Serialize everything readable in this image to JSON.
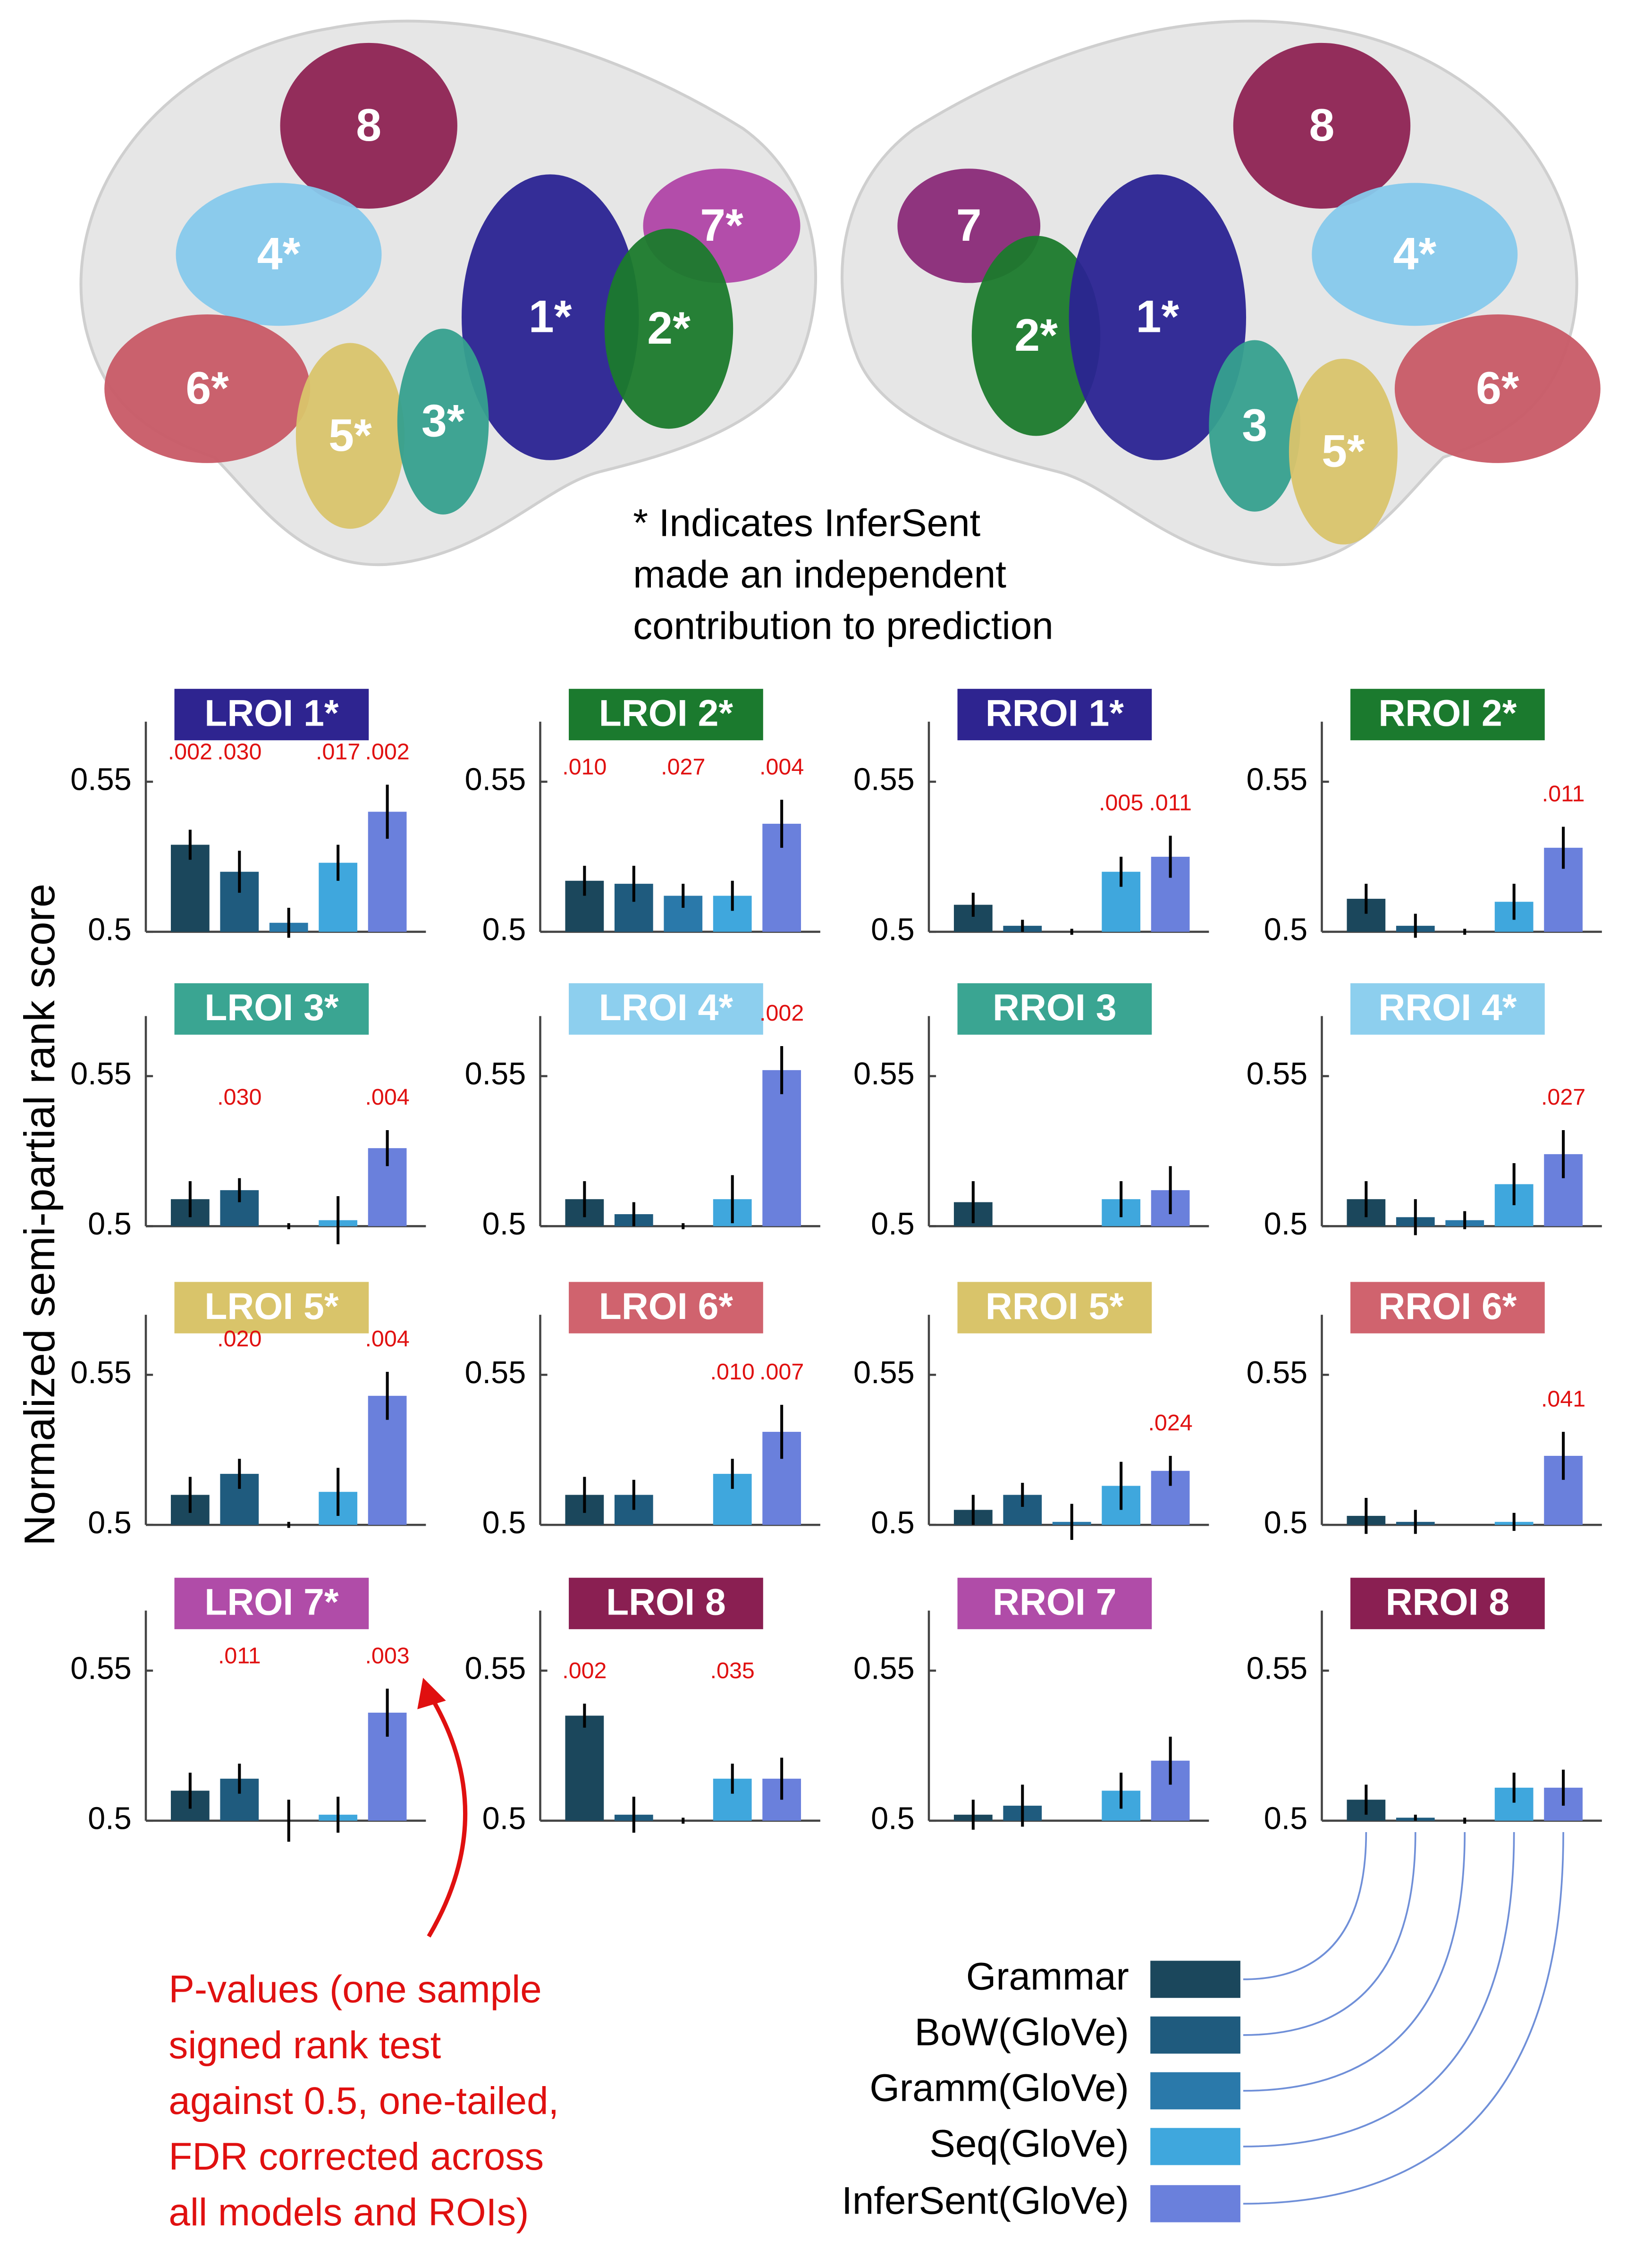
{
  "brain": {
    "left": [
      {
        "label": "8",
        "color": "#8e2353"
      },
      {
        "label": "4*",
        "color": "#86c9ec"
      },
      {
        "label": "7*",
        "color": "#b044a6"
      },
      {
        "label": "1*",
        "color": "#2a2392"
      },
      {
        "label": "2*",
        "color": "#1b7a2c"
      },
      {
        "label": "6*",
        "color": "#c85a66"
      },
      {
        "label": "5*",
        "color": "#d9c46c"
      },
      {
        "label": "3*",
        "color": "#36a08e"
      }
    ],
    "right": [
      {
        "label": "8",
        "color": "#8e2353"
      },
      {
        "label": "7",
        "color": "#8a2a78"
      },
      {
        "label": "2*",
        "color": "#1b7a2c"
      },
      {
        "label": "1*",
        "color": "#2a2392"
      },
      {
        "label": "4*",
        "color": "#86c9ec"
      },
      {
        "label": "6*",
        "color": "#c85a66"
      },
      {
        "label": "3",
        "color": "#36a08e"
      },
      {
        "label": "5*",
        "color": "#d9c46c"
      }
    ]
  },
  "note": [
    "* Indicates InferSent",
    "made an independent",
    "contribution to prediction"
  ],
  "y_axis_label": "Normalized semi-partial rank score",
  "legend": [
    {
      "name": "Grammar",
      "color": "#1b475c"
    },
    {
      "name": "BoW(GloVe)",
      "color": "#1f5b7e"
    },
    {
      "name": "Gramm(GloVe)",
      "color": "#2a79aa"
    },
    {
      "name": "Seq(GloVe)",
      "color": "#3fa7dd"
    },
    {
      "name": "InferSent(GloVe)",
      "color": "#6a80dc"
    }
  ],
  "annotation": [
    "P-values (one sample",
    "signed rank test",
    "against 0.5, one-tailed,",
    "FDR corrected across",
    "all models and ROIs)"
  ],
  "chart_data": [
    {
      "type": "bar",
      "title": "LROI 1*",
      "title_color": "#2e2490",
      "values": [
        0.529,
        0.52,
        0.503,
        0.523,
        0.54
      ],
      "errors": [
        0.005,
        0.007,
        0.005,
        0.006,
        0.009
      ],
      "p_values": [
        ".002",
        ".030",
        null,
        ".017",
        ".002"
      ],
      "ylim": [
        0.5,
        0.57
      ],
      "yticks": [
        0.5,
        0.55
      ]
    },
    {
      "type": "bar",
      "title": "LROI 2*",
      "title_color": "#1b7a2e",
      "values": [
        0.517,
        0.516,
        0.512,
        0.512,
        0.536
      ],
      "errors": [
        0.005,
        0.006,
        0.004,
        0.005,
        0.008
      ],
      "p_values": [
        ".010",
        null,
        ".027",
        null,
        ".004"
      ],
      "ylim": [
        0.5,
        0.57
      ],
      "yticks": [
        0.5,
        0.55
      ]
    },
    {
      "type": "bar",
      "title": "RROI 1*",
      "title_color": "#2e2490",
      "values": [
        0.509,
        0.502,
        0.5,
        0.52,
        0.525
      ],
      "errors": [
        0.004,
        0.002,
        0.001,
        0.005,
        0.007
      ],
      "p_values": [
        null,
        null,
        null,
        ".005",
        ".011"
      ],
      "ylim": [
        0.5,
        0.57
      ],
      "yticks": [
        0.5,
        0.55
      ]
    },
    {
      "type": "bar",
      "title": "RROI 2*",
      "title_color": "#1b7a2e",
      "values": [
        0.511,
        0.502,
        0.5,
        0.51,
        0.528
      ],
      "errors": [
        0.005,
        0.004,
        0.001,
        0.006,
        0.007
      ],
      "p_values": [
        null,
        null,
        null,
        null,
        ".011"
      ],
      "ylim": [
        0.5,
        0.57
      ],
      "yticks": [
        0.5,
        0.55
      ]
    },
    {
      "type": "bar",
      "title": "LROI 3*",
      "title_color": "#3aa592",
      "values": [
        0.509,
        0.512,
        0.5,
        0.502,
        0.526
      ],
      "errors": [
        0.006,
        0.004,
        0.001,
        0.008,
        0.006
      ],
      "p_values": [
        null,
        ".030",
        null,
        null,
        ".004"
      ],
      "ylim": [
        0.5,
        0.57
      ],
      "yticks": [
        0.5,
        0.55
      ]
    },
    {
      "type": "bar",
      "title": "LROI 4*",
      "title_color": "#8dcfee",
      "values": [
        0.509,
        0.504,
        0.5,
        0.509,
        0.552
      ],
      "errors": [
        0.006,
        0.004,
        0.001,
        0.008,
        0.008
      ],
      "p_values": [
        null,
        null,
        null,
        null,
        ".002"
      ],
      "ylim": [
        0.5,
        0.57
      ],
      "yticks": [
        0.5,
        0.55
      ]
    },
    {
      "type": "bar",
      "title": "RROI 3",
      "title_color": "#3aa592",
      "values": [
        0.508,
        0.5,
        0.5,
        0.509,
        0.512
      ],
      "errors": [
        0.007,
        0,
        0,
        0.006,
        0.008
      ],
      "p_values": [
        null,
        null,
        null,
        null,
        null
      ],
      "ylim": [
        0.5,
        0.57
      ],
      "yticks": [
        0.5,
        0.55
      ]
    },
    {
      "type": "bar",
      "title": "RROI 4*",
      "title_color": "#8dcfee",
      "values": [
        0.509,
        0.503,
        0.502,
        0.514,
        0.524
      ],
      "errors": [
        0.006,
        0.006,
        0.003,
        0.007,
        0.008
      ],
      "p_values": [
        null,
        null,
        null,
        null,
        ".027"
      ],
      "ylim": [
        0.5,
        0.57
      ],
      "yticks": [
        0.5,
        0.55
      ]
    },
    {
      "type": "bar",
      "title": "LROI 5*",
      "title_color": "#d9c46a",
      "values": [
        0.51,
        0.517,
        0.5,
        0.511,
        0.543
      ],
      "errors": [
        0.006,
        0.005,
        0.001,
        0.008,
        0.008
      ],
      "p_values": [
        null,
        ".020",
        null,
        null,
        ".004"
      ],
      "ylim": [
        0.5,
        0.57
      ],
      "yticks": [
        0.5,
        0.55
      ]
    },
    {
      "type": "bar",
      "title": "LROI 6*",
      "title_color": "#d0636e",
      "values": [
        0.51,
        0.51,
        0.5,
        0.517,
        0.531
      ],
      "errors": [
        0.006,
        0.005,
        0,
        0.005,
        0.009
      ],
      "p_values": [
        null,
        null,
        null,
        ".010",
        ".007"
      ],
      "ylim": [
        0.5,
        0.57
      ],
      "yticks": [
        0.5,
        0.55
      ]
    },
    {
      "type": "bar",
      "title": "RROI 5*",
      "title_color": "#d9c46a",
      "values": [
        0.505,
        0.51,
        0.501,
        0.513,
        0.518
      ],
      "errors": [
        0.005,
        0.004,
        0.006,
        0.008,
        0.005
      ],
      "p_values": [
        null,
        null,
        null,
        null,
        ".024"
      ],
      "ylim": [
        0.5,
        0.57
      ],
      "yticks": [
        0.5,
        0.55
      ]
    },
    {
      "type": "bar",
      "title": "RROI 6*",
      "title_color": "#d0636e",
      "values": [
        0.503,
        0.501,
        0.5,
        0.501,
        0.523
      ],
      "errors": [
        0.006,
        0.004,
        0,
        0.003,
        0.008
      ],
      "p_values": [
        null,
        null,
        null,
        null,
        ".041"
      ],
      "ylim": [
        0.5,
        0.57
      ],
      "yticks": [
        0.5,
        0.55
      ]
    },
    {
      "type": "bar",
      "title": "LROI 7*",
      "title_color": "#b04ca8",
      "values": [
        0.51,
        0.514,
        0.5,
        0.502,
        0.536
      ],
      "errors": [
        0.006,
        0.005,
        0.007,
        0.006,
        0.008
      ],
      "p_values": [
        null,
        ".011",
        null,
        null,
        ".003"
      ],
      "ylim": [
        0.5,
        0.57
      ],
      "yticks": [
        0.5,
        0.55
      ]
    },
    {
      "type": "bar",
      "title": "LROI 8",
      "title_color": "#8a1f52",
      "values": [
        0.535,
        0.502,
        0.5,
        0.514,
        0.514
      ],
      "errors": [
        0.004,
        0.006,
        0.001,
        0.005,
        0.007
      ],
      "p_values": [
        ".002",
        null,
        null,
        ".035",
        null
      ],
      "ylim": [
        0.5,
        0.57
      ],
      "yticks": [
        0.5,
        0.55
      ]
    },
    {
      "type": "bar",
      "title": "RROI 7",
      "title_color": "#b04ca8",
      "values": [
        0.502,
        0.505,
        0.5,
        0.51,
        0.52
      ],
      "errors": [
        0.005,
        0.007,
        0,
        0.006,
        0.008
      ],
      "p_values": [
        null,
        null,
        null,
        null,
        null
      ],
      "ylim": [
        0.5,
        0.57
      ],
      "yticks": [
        0.5,
        0.55
      ]
    },
    {
      "type": "bar",
      "title": "RROI 8",
      "title_color": "#8a1f52",
      "values": [
        0.507,
        0.501,
        0.5,
        0.511,
        0.511
      ],
      "errors": [
        0.005,
        0.001,
        0.001,
        0.005,
        0.006
      ],
      "p_values": [
        null,
        null,
        null,
        null,
        null
      ],
      "ylim": [
        0.5,
        0.57
      ],
      "yticks": [
        0.5,
        0.55
      ]
    }
  ]
}
